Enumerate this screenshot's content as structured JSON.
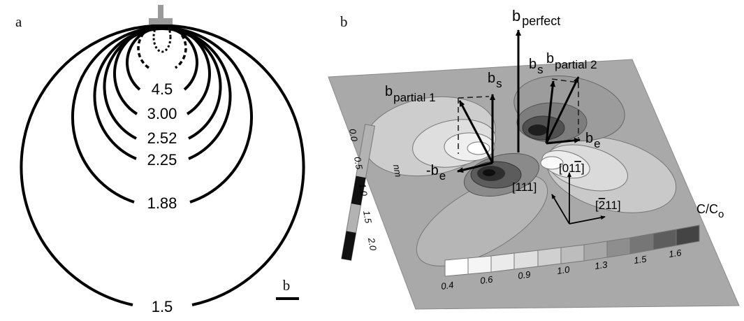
{
  "panel_a": {
    "letter": "a",
    "contour_labels": [
      "4.5",
      "3.00",
      "2.52",
      "2.25",
      "1.88",
      "1.5"
    ],
    "scale_label": "b"
  },
  "panel_b": {
    "letter": "b",
    "vectors": {
      "b_perfect": {
        "base": "b",
        "sub": "perfect"
      },
      "b_partial_1": {
        "base": "b",
        "sub": "partial 1"
      },
      "b_partial_2": {
        "base": "b",
        "sub": "partial 2"
      },
      "b_s_left": {
        "base": "b",
        "sub": "s"
      },
      "b_s_right": {
        "base": "b",
        "sub": "s"
      },
      "b_e": {
        "base": "b",
        "sub": "e"
      },
      "neg_b_e": {
        "base": "-b",
        "sub": "e"
      }
    },
    "directions": {
      "dir_111": "[111]",
      "dir_011": "[01",
      "dir_011_bar": "1",
      "dir_011_end": "]",
      "dir_211_open": "[",
      "dir_211_bar": "2",
      "dir_211_rest": "11]"
    },
    "nm_scale": {
      "ticks": [
        "0.0",
        "0.5",
        "1.0",
        "1.5",
        "2.0"
      ],
      "unit": "nm"
    },
    "colorbar": {
      "title_base": "C/C",
      "title_sub": "o",
      "ticks": [
        "0.4",
        "0.6",
        "0.9",
        "1.0",
        "1.3",
        "1.5",
        "1.6"
      ]
    }
  }
}
